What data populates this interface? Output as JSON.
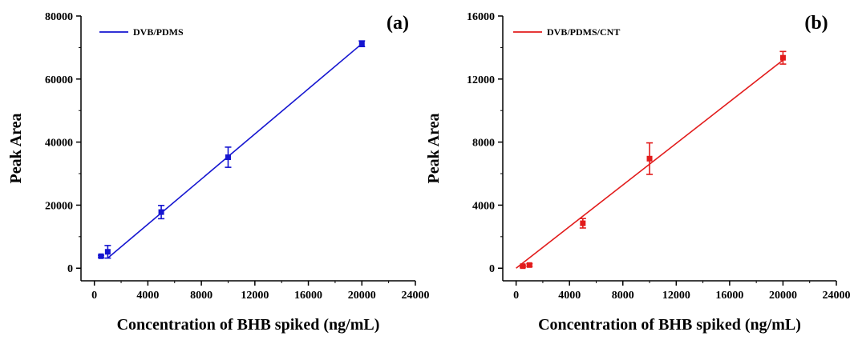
{
  "chart_data": [
    {
      "type": "scatter",
      "panel_label": "(a)",
      "title": "",
      "xlabel": "Concentration of BHB spiked (ng/mL)",
      "ylabel": "Peak Area",
      "xlim": [
        -1000,
        24000
      ],
      "ylim": [
        -4000,
        80000
      ],
      "xticks": [
        0,
        4000,
        8000,
        12000,
        16000,
        20000,
        24000
      ],
      "yticks": [
        0,
        20000,
        40000,
        60000,
        80000
      ],
      "xtick_labels": [
        "0",
        "4000",
        "8000",
        "12000",
        "16000",
        "20000",
        "24000"
      ],
      "ytick_labels": [
        "0",
        "20000",
        "40000",
        "60000",
        "80000"
      ],
      "color": "#1515d0",
      "legend_position": "top-left",
      "series": [
        {
          "name": "DVB/PDMS",
          "x": [
            500,
            1000,
            5000,
            10000,
            20000
          ],
          "y": [
            3800,
            5200,
            17800,
            35200,
            71200
          ],
          "err": [
            300,
            2000,
            2100,
            3200,
            900
          ],
          "fit_line": [
            [
              1000,
              3200
            ],
            [
              20000,
              71200
            ]
          ]
        }
      ]
    },
    {
      "type": "scatter",
      "panel_label": "(b)",
      "title": "",
      "xlabel": "Concentration of BHB spiked (ng/mL)",
      "ylabel": "Peak Area",
      "xlim": [
        -1000,
        24000
      ],
      "ylim": [
        -800,
        16000
      ],
      "xticks": [
        0,
        4000,
        8000,
        12000,
        16000,
        20000,
        24000
      ],
      "yticks": [
        0,
        4000,
        8000,
        12000,
        16000
      ],
      "xtick_labels": [
        "0",
        "4000",
        "8000",
        "12000",
        "16000",
        "20000",
        "24000"
      ],
      "ytick_labels": [
        "0",
        "4000",
        "8000",
        "12000",
        "16000"
      ],
      "color": "#e21b1b",
      "legend_position": "top-left",
      "series": [
        {
          "name": "DVB/PDMS/CNT",
          "x": [
            500,
            1000,
            5000,
            10000,
            20000
          ],
          "y": [
            130,
            200,
            2850,
            6950,
            13350
          ],
          "err": [
            60,
            80,
            300,
            1000,
            400
          ],
          "fit_line": [
            [
              0,
              0
            ],
            [
              20000,
              13200
            ]
          ]
        }
      ]
    }
  ]
}
